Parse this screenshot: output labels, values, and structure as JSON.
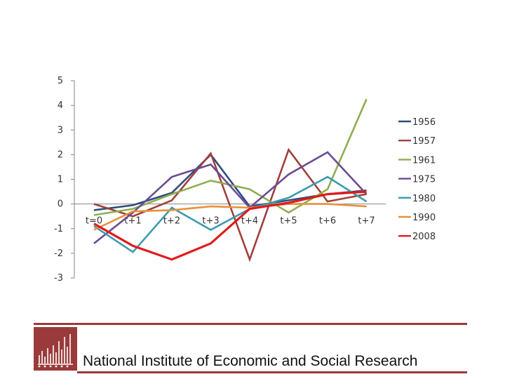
{
  "chart_data": {
    "type": "line",
    "title": "",
    "xlabel": "",
    "ylabel": "",
    "categories": [
      "t=0",
      "t+1",
      "t+2",
      "t+3",
      "t+4",
      "t+5",
      "t+6",
      "t+7"
    ],
    "yticks": [
      "5",
      "4",
      "3",
      "2",
      "1",
      "0",
      "-1",
      "-2",
      "-3"
    ],
    "ylim": [
      -3,
      5
    ],
    "series": [
      {
        "name": "1956",
        "color": "#2f4d7e",
        "values": [
          -0.25,
          -0.05,
          0.45,
          2.0,
          -0.1,
          0.15,
          0.4,
          0.55
        ]
      },
      {
        "name": "1957",
        "color": "#a0403d",
        "values": [
          0.0,
          -0.5,
          0.15,
          2.05,
          -2.25,
          2.2,
          0.1,
          0.4
        ]
      },
      {
        "name": "1961",
        "color": "#8fae4f",
        "values": [
          -0.45,
          -0.2,
          0.4,
          0.95,
          0.6,
          -0.35,
          0.6,
          4.25
        ]
      },
      {
        "name": "1975",
        "color": "#6a4c93",
        "values": [
          -1.6,
          -0.35,
          1.1,
          1.6,
          -0.15,
          1.2,
          2.1,
          0.4
        ]
      },
      {
        "name": "1980",
        "color": "#3c9ab0",
        "values": [
          -0.9,
          -1.95,
          -0.15,
          -1.05,
          -0.2,
          0.25,
          1.1,
          0.1
        ]
      },
      {
        "name": "1990",
        "color": "#e8913a",
        "values": [
          -1.05,
          -0.3,
          -0.25,
          -0.1,
          -0.15,
          0.0,
          0.0,
          -0.1
        ]
      },
      {
        "name": "2008",
        "color": "#e01b1b",
        "values": [
          -0.8,
          -1.7,
          -2.25,
          -1.6,
          -0.2,
          0.05,
          0.4,
          0.5
        ]
      }
    ]
  },
  "footer": {
    "organization": "National Institute of Economic and Social Research",
    "accent_color": "#9b3a3a"
  }
}
